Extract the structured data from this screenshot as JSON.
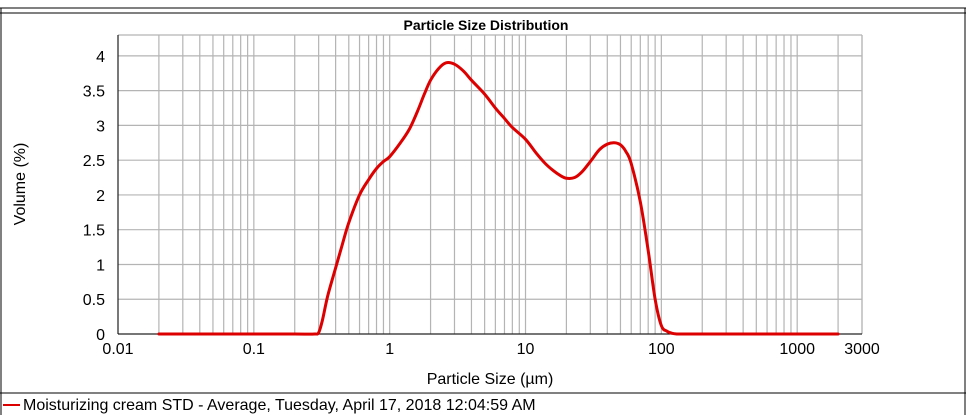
{
  "chart_data": {
    "type": "line",
    "title": "Particle Size Distribution",
    "xlabel": "Particle Size (µm)",
    "ylabel": "Volume (%)",
    "xscale": "log",
    "xlim": [
      0.01,
      3000
    ],
    "ylim": [
      0,
      4.3
    ],
    "grid": true,
    "x_ticks": [
      0.01,
      0.1,
      1,
      10,
      100,
      1000,
      3000
    ],
    "x_tick_labels": [
      "0.01",
      "0.1",
      "1",
      "10",
      "100",
      "1000",
      "3000"
    ],
    "y_ticks": [
      0,
      0.5,
      1,
      1.5,
      2,
      2.5,
      3,
      3.5,
      4
    ],
    "y_tick_labels": [
      "0",
      "0.5",
      "1",
      "1.5",
      "2",
      "2.5",
      "3",
      "3.5",
      "4"
    ],
    "legend_position": "bottom",
    "series": [
      {
        "name": "Moisturizing cream STD - Average, Tuesday, April 17, 2018 12:04:59 AM",
        "color": "#dd0000",
        "x": [
          0.02,
          0.05,
          0.1,
          0.2,
          0.28,
          0.3,
          0.32,
          0.35,
          0.4,
          0.45,
          0.5,
          0.6,
          0.7,
          0.8,
          0.9,
          1.0,
          1.2,
          1.4,
          1.6,
          1.8,
          2.0,
          2.3,
          2.6,
          3.0,
          3.5,
          4.0,
          5.0,
          6.0,
          7.0,
          8.0,
          10,
          12,
          14,
          16,
          18,
          20,
          23,
          26,
          30,
          35,
          40,
          45,
          50,
          55,
          60,
          70,
          80,
          90,
          100,
          110,
          120,
          130,
          140,
          150,
          200,
          500,
          1000,
          2000
        ],
        "y": [
          0,
          0,
          0,
          0,
          0,
          0.02,
          0.2,
          0.55,
          0.95,
          1.3,
          1.6,
          2.0,
          2.22,
          2.38,
          2.48,
          2.55,
          2.75,
          2.95,
          3.2,
          3.45,
          3.65,
          3.82,
          3.9,
          3.88,
          3.78,
          3.65,
          3.45,
          3.25,
          3.1,
          2.97,
          2.8,
          2.6,
          2.45,
          2.35,
          2.28,
          2.24,
          2.25,
          2.33,
          2.48,
          2.65,
          2.73,
          2.75,
          2.72,
          2.62,
          2.45,
          1.9,
          1.2,
          0.5,
          0.12,
          0.04,
          0.01,
          0,
          0,
          0,
          0,
          0,
          0,
          0
        ]
      }
    ]
  }
}
